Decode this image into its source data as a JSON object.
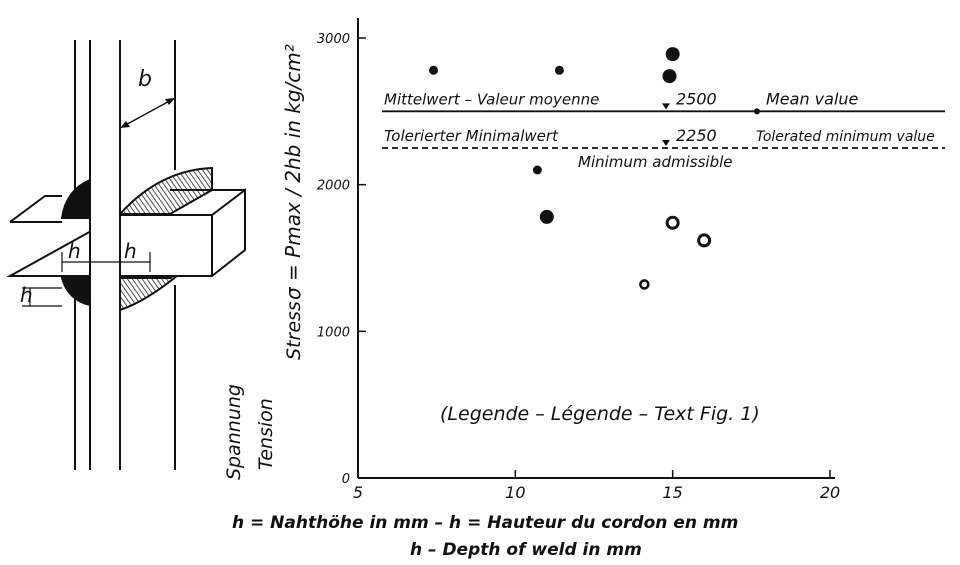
{
  "chart_data": {
    "type": "scatter",
    "xlim": [
      5,
      20
    ],
    "ylim": [
      0,
      3000
    ],
    "x_ticks": [
      "5",
      "10",
      "15",
      "20"
    ],
    "y_ticks": [
      "0",
      "1000",
      "2000",
      "3000"
    ],
    "y_label_formula": "σ = Pmax / 2hb  in kg/cm²",
    "y_label_words": [
      "Spannung",
      "Stress",
      "Tension"
    ],
    "x_label_line1": "h = Nahthöhe in mm  –  h = Hauteur du cordon en mm",
    "x_label_line2": "h – Depth of weld in mm",
    "points": [
      {
        "x": 7.4,
        "y": 2780,
        "marker": "filled-small"
      },
      {
        "x": 11.4,
        "y": 2780,
        "marker": "filled-small"
      },
      {
        "x": 15.0,
        "y": 2890,
        "marker": "filled-large"
      },
      {
        "x": 14.9,
        "y": 2740,
        "marker": "filled-large"
      },
      {
        "x": 10.7,
        "y": 2100,
        "marker": "filled-small"
      },
      {
        "x": 11.0,
        "y": 1780,
        "marker": "filled-large"
      },
      {
        "x": 15.0,
        "y": 1740,
        "marker": "ring"
      },
      {
        "x": 16.0,
        "y": 1620,
        "marker": "ring"
      },
      {
        "x": 14.1,
        "y": 1320,
        "marker": "ring-small"
      }
    ],
    "reference_lines": [
      {
        "value": 2500,
        "style": "solid",
        "label_de_fr": "Mittelwert  –  Valeur moyenne",
        "label_value": "2500",
        "label_en": "Mean value"
      },
      {
        "value": 2250,
        "style": "dashed",
        "label_de_fr": "Tolerierter Minimalwert",
        "label_value": "2250",
        "label_en": "Tolerated minimum value",
        "label_fr": "Minimum admissible"
      }
    ],
    "annotation": "(Legende – Légende – Text  Fig. 1)"
  },
  "diagram": {
    "label_b": "b",
    "label_h_left": "h",
    "label_h_right": "h",
    "label_h_side": "h"
  }
}
